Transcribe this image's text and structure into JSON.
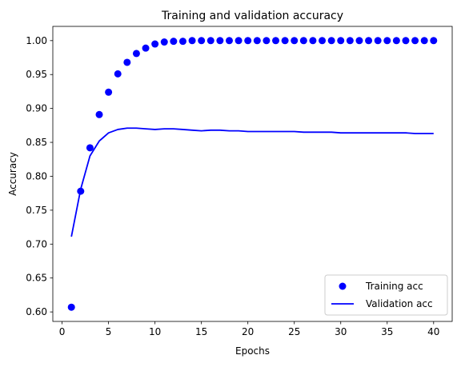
{
  "chart_data": {
    "type": "line",
    "title": "Training and validation accuracy",
    "xlabel": "Epochs",
    "ylabel": "Accuracy",
    "xlim": [
      -1,
      42
    ],
    "ylim": [
      0.586,
      1.021
    ],
    "xticks": [
      0,
      5,
      10,
      15,
      20,
      25,
      30,
      35,
      40
    ],
    "yticks": [
      0.6,
      0.65,
      0.7,
      0.75,
      0.8,
      0.85,
      0.9,
      0.95,
      1.0
    ],
    "grid": false,
    "legend_position": "lower-right",
    "series": [
      {
        "name": "Training acc",
        "style": "markers",
        "color": "#0000ff",
        "x": [
          1,
          2,
          3,
          4,
          5,
          6,
          7,
          8,
          9,
          10,
          11,
          12,
          13,
          14,
          15,
          16,
          17,
          18,
          19,
          20,
          21,
          22,
          23,
          24,
          25,
          26,
          27,
          28,
          29,
          30,
          31,
          32,
          33,
          34,
          35,
          36,
          37,
          38,
          39,
          40
        ],
        "values": [
          0.607,
          0.778,
          0.842,
          0.891,
          0.924,
          0.951,
          0.968,
          0.981,
          0.989,
          0.995,
          0.998,
          0.999,
          0.999,
          1.0,
          1.0,
          1.0,
          1.0,
          1.0,
          1.0,
          1.0,
          1.0,
          1.0,
          1.0,
          1.0,
          1.0,
          1.0,
          1.0,
          1.0,
          1.0,
          1.0,
          1.0,
          1.0,
          1.0,
          1.0,
          1.0,
          1.0,
          1.0,
          1.0,
          1.0,
          1.0
        ]
      },
      {
        "name": "Validation acc",
        "style": "line",
        "color": "#0000ff",
        "x": [
          1,
          2,
          3,
          4,
          5,
          6,
          7,
          8,
          9,
          10,
          11,
          12,
          13,
          14,
          15,
          16,
          17,
          18,
          19,
          20,
          21,
          22,
          23,
          24,
          25,
          26,
          27,
          28,
          29,
          30,
          31,
          32,
          33,
          34,
          35,
          36,
          37,
          38,
          39,
          40
        ],
        "values": [
          0.711,
          0.781,
          0.83,
          0.852,
          0.864,
          0.869,
          0.871,
          0.871,
          0.87,
          0.869,
          0.87,
          0.87,
          0.869,
          0.868,
          0.867,
          0.868,
          0.868,
          0.867,
          0.867,
          0.866,
          0.866,
          0.866,
          0.866,
          0.866,
          0.866,
          0.865,
          0.865,
          0.865,
          0.865,
          0.864,
          0.864,
          0.864,
          0.864,
          0.864,
          0.864,
          0.864,
          0.864,
          0.863,
          0.863,
          0.863
        ]
      }
    ]
  }
}
